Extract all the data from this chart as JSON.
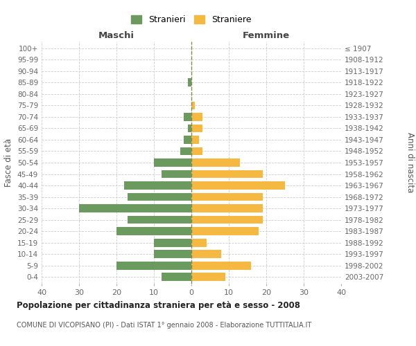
{
  "age_groups": [
    "0-4",
    "5-9",
    "10-14",
    "15-19",
    "20-24",
    "25-29",
    "30-34",
    "35-39",
    "40-44",
    "45-49",
    "50-54",
    "55-59",
    "60-64",
    "65-69",
    "70-74",
    "75-79",
    "80-84",
    "85-89",
    "90-94",
    "95-99",
    "100+"
  ],
  "birth_years": [
    "2003-2007",
    "1998-2002",
    "1993-1997",
    "1988-1992",
    "1983-1987",
    "1978-1982",
    "1973-1977",
    "1968-1972",
    "1963-1967",
    "1958-1962",
    "1953-1957",
    "1948-1952",
    "1943-1947",
    "1938-1942",
    "1933-1937",
    "1928-1932",
    "1923-1927",
    "1918-1922",
    "1913-1917",
    "1908-1912",
    "≤ 1907"
  ],
  "males": [
    8,
    20,
    10,
    10,
    20,
    17,
    30,
    17,
    18,
    8,
    10,
    3,
    2,
    1,
    2,
    0,
    0,
    1,
    0,
    0,
    0
  ],
  "females": [
    9,
    16,
    8,
    4,
    18,
    19,
    19,
    19,
    25,
    19,
    13,
    3,
    2,
    3,
    3,
    1,
    0,
    0,
    0,
    0,
    0
  ],
  "male_color": "#6a9a5e",
  "female_color": "#f5b942",
  "male_label": "Stranieri",
  "female_label": "Straniere",
  "title": "Popolazione per cittadinanza straniera per età e sesso - 2008",
  "subtitle": "COMUNE DI VICOPISANO (PI) - Dati ISTAT 1° gennaio 2008 - Elaborazione TUTTITALIA.IT",
  "xlabel_left": "Maschi",
  "xlabel_right": "Femmine",
  "ylabel_left": "Fasce di età",
  "ylabel_right": "Anni di nascita",
  "xlim": 40,
  "background_color": "#ffffff",
  "grid_color": "#cccccc"
}
